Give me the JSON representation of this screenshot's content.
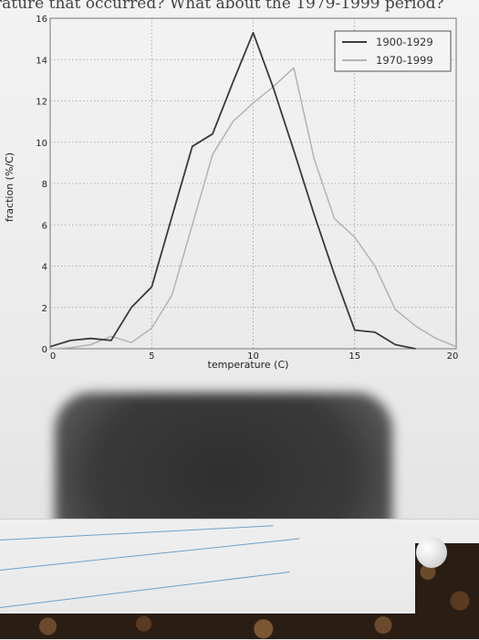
{
  "page": {
    "question_text": "rature that occurred? What about the 1979-1999 period?"
  },
  "chart_data": {
    "type": "line",
    "title": "",
    "xlabel": "temperature (C)",
    "ylabel": "fraction (%/C)",
    "xlim": [
      0,
      20
    ],
    "ylim": [
      0,
      16
    ],
    "xticks": [
      0,
      5,
      10,
      15,
      20
    ],
    "yticks": [
      0,
      2,
      4,
      6,
      8,
      10,
      12,
      14,
      16
    ],
    "grid": true,
    "legend_position": "top-right",
    "series": [
      {
        "name": "1900-1929",
        "color": "#3a3a3a",
        "x": [
          0,
          1,
          2,
          3,
          4,
          5,
          6,
          7,
          8,
          9,
          10,
          11,
          12,
          13,
          14,
          15,
          16,
          17,
          18
        ],
        "y": [
          0.1,
          0.4,
          0.5,
          0.4,
          2.0,
          3.0,
          6.4,
          9.8,
          10.4,
          12.9,
          15.3,
          12.6,
          9.6,
          6.5,
          3.6,
          0.9,
          0.8,
          0.2,
          0.0
        ]
      },
      {
        "name": "1970-1999",
        "color": "#b3b3b3",
        "x": [
          0,
          1,
          2,
          3,
          4,
          5,
          6,
          7,
          8,
          9,
          10,
          11,
          12,
          13,
          14,
          15,
          16,
          17,
          18,
          19,
          20
        ],
        "y": [
          0.0,
          0.05,
          0.2,
          0.6,
          0.3,
          1.0,
          2.6,
          6.0,
          9.4,
          11.0,
          11.9,
          12.7,
          13.6,
          9.2,
          6.3,
          5.4,
          4.0,
          1.9,
          1.1,
          0.5,
          0.1
        ]
      }
    ]
  }
}
